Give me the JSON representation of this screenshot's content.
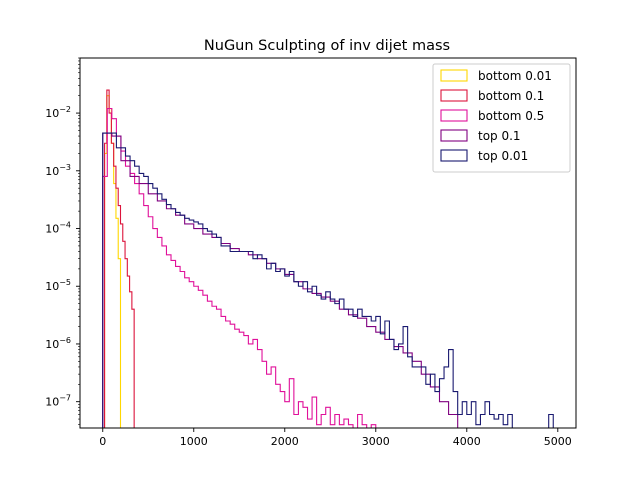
{
  "chart_data": {
    "type": "histogram-step",
    "title": "NuGun Sculpting of inv dijet mass",
    "xlabel": "",
    "ylabel": "",
    "xlim": [
      -250,
      5200
    ],
    "ylim": [
      3.5e-08,
      0.09
    ],
    "yscale": "log",
    "grid": false,
    "legend_position": "top-right",
    "x_ticks": [
      {
        "value": 0,
        "label": "0"
      },
      {
        "value": 1000,
        "label": "1000"
      },
      {
        "value": 2000,
        "label": "2000"
      },
      {
        "value": 3000,
        "label": "3000"
      },
      {
        "value": 4000,
        "label": "4000"
      },
      {
        "value": 5000,
        "label": "5000"
      }
    ],
    "y_ticks": [
      {
        "exp": -7,
        "label": "10",
        "sup": "−7"
      },
      {
        "exp": -6,
        "label": "10",
        "sup": "−6"
      },
      {
        "exp": -5,
        "label": "10",
        "sup": "−5"
      },
      {
        "exp": -4,
        "label": "10",
        "sup": "−4"
      },
      {
        "exp": -3,
        "label": "10",
        "sup": "−3"
      },
      {
        "exp": -2,
        "label": "10",
        "sup": "−2"
      }
    ],
    "series": [
      {
        "name": "bottom 0.01",
        "color": "#ffd700",
        "bin_width": 25,
        "bins": [
          [
            20,
            0.002
          ],
          [
            45,
            0.02
          ],
          [
            70,
            0.012
          ],
          [
            95,
            0.003
          ],
          [
            120,
            0.0006
          ],
          [
            145,
            0.00015
          ],
          [
            170,
            3e-05
          ],
          [
            195,
            0
          ]
        ]
      },
      {
        "name": "bottom 0.1",
        "color": "#dc143c",
        "bin_width": 25,
        "bins": [
          [
            20,
            0.003
          ],
          [
            45,
            0.025
          ],
          [
            70,
            0.01
          ],
          [
            95,
            0.003
          ],
          [
            120,
            0.0012
          ],
          [
            145,
            0.0005
          ],
          [
            170,
            0.00025
          ],
          [
            195,
            0.00012
          ],
          [
            220,
            6e-05
          ],
          [
            245,
            3e-05
          ],
          [
            270,
            1.5e-05
          ],
          [
            295,
            8e-06
          ],
          [
            320,
            4e-06
          ],
          [
            345,
            0
          ]
        ]
      },
      {
        "name": "bottom 0.5",
        "color": "#e0109a",
        "bin_width": 50,
        "bins": [
          [
            0,
            0.0008
          ],
          [
            50,
            0.012
          ],
          [
            100,
            0.008
          ],
          [
            150,
            0.004
          ],
          [
            200,
            0.0022
          ],
          [
            250,
            0.0012
          ],
          [
            300,
            0.0009
          ],
          [
            350,
            0.0006
          ],
          [
            400,
            0.0004
          ],
          [
            450,
            0.00025
          ],
          [
            500,
            0.00016
          ],
          [
            550,
            0.0001
          ],
          [
            600,
            7e-05
          ],
          [
            650,
            5e-05
          ],
          [
            700,
            3.5e-05
          ],
          [
            750,
            2.8e-05
          ],
          [
            800,
            2.2e-05
          ],
          [
            850,
            1.8e-05
          ],
          [
            900,
            1.4e-05
          ],
          [
            950,
            1.2e-05
          ],
          [
            1000,
            1e-05
          ],
          [
            1050,
            8.5e-06
          ],
          [
            1100,
            7e-06
          ],
          [
            1150,
            5.5e-06
          ],
          [
            1200,
            4.5e-06
          ],
          [
            1250,
            4e-06
          ],
          [
            1300,
            3e-06
          ],
          [
            1350,
            2.5e-06
          ],
          [
            1400,
            2.2e-06
          ],
          [
            1450,
            1.8e-06
          ],
          [
            1500,
            1.6e-06
          ],
          [
            1550,
            1.4e-06
          ],
          [
            1600,
            1e-06
          ],
          [
            1650,
            1.2e-06
          ],
          [
            1700,
            8e-07
          ],
          [
            1750,
            5e-07
          ],
          [
            1800,
            3e-07
          ],
          [
            1850,
            4e-07
          ],
          [
            1900,
            2e-07
          ],
          [
            1950,
            1.5e-07
          ],
          [
            2000,
            1e-07
          ],
          [
            2050,
            2.5e-07
          ],
          [
            2100,
            6e-08
          ],
          [
            2150,
            1e-07
          ],
          [
            2200,
            8e-08
          ],
          [
            2250,
            5e-08
          ],
          [
            2300,
            1.2e-07
          ],
          [
            2350,
            4e-08
          ],
          [
            2400,
            6e-08
          ],
          [
            2450,
            8e-08
          ],
          [
            2500,
            4e-08
          ],
          [
            2550,
            6e-08
          ],
          [
            2600,
            4e-08
          ],
          [
            2650,
            5e-08
          ],
          [
            2700,
            4e-08
          ],
          [
            2750,
            2e-08
          ],
          [
            2800,
            6e-08
          ],
          [
            2850,
            4e-08
          ],
          [
            2900,
            2e-08
          ],
          [
            2950,
            4e-08
          ],
          [
            3000,
            0
          ]
        ]
      },
      {
        "name": "top 0.1",
        "color": "#800080",
        "bin_width": 100,
        "bins": [
          [
            0,
            0.0045
          ],
          [
            100,
            0.004
          ],
          [
            200,
            0.0015
          ],
          [
            300,
            0.0008
          ],
          [
            400,
            0.0006
          ],
          [
            500,
            0.0004
          ],
          [
            600,
            0.0003
          ],
          [
            700,
            0.00022
          ],
          [
            800,
            0.00017
          ],
          [
            900,
            0.00012
          ],
          [
            1000,
            0.0001
          ],
          [
            1100,
            8e-05
          ],
          [
            1200,
            7e-05
          ],
          [
            1300,
            5.5e-05
          ],
          [
            1400,
            4.5e-05
          ],
          [
            1500,
            4e-05
          ],
          [
            1600,
            3.5e-05
          ],
          [
            1700,
            3e-05
          ],
          [
            1800,
            2.5e-05
          ],
          [
            1900,
            2e-05
          ],
          [
            2000,
            1.6e-05
          ],
          [
            2100,
            1.2e-05
          ],
          [
            2200,
            9e-06
          ],
          [
            2300,
            7.5e-06
          ],
          [
            2400,
            6.5e-06
          ],
          [
            2500,
            5.5e-06
          ],
          [
            2600,
            4e-06
          ],
          [
            2700,
            3.2e-06
          ],
          [
            2800,
            2.8e-06
          ],
          [
            2900,
            2e-06
          ],
          [
            3000,
            1.6e-06
          ],
          [
            3100,
            1.2e-06
          ],
          [
            3200,
            9e-07
          ],
          [
            3300,
            7e-07
          ],
          [
            3400,
            5e-07
          ],
          [
            3500,
            3e-07
          ],
          [
            3600,
            1.8e-07
          ],
          [
            3700,
            1e-07
          ],
          [
            3800,
            6e-08
          ],
          [
            3900,
            0
          ]
        ]
      },
      {
        "name": "top 0.01",
        "color": "#191970",
        "bin_width": 50,
        "bins": [
          [
            0,
            0.0045
          ],
          [
            50,
            0.0045
          ],
          [
            100,
            0.0045
          ],
          [
            150,
            0.0025
          ],
          [
            200,
            0.0025
          ],
          [
            250,
            0.0018
          ],
          [
            300,
            0.0015
          ],
          [
            350,
            0.0012
          ],
          [
            400,
            0.0009
          ],
          [
            450,
            0.0008
          ],
          [
            500,
            0.0006
          ],
          [
            550,
            0.0005
          ],
          [
            600,
            0.0004
          ],
          [
            650,
            0.00032
          ],
          [
            700,
            0.00026
          ],
          [
            750,
            0.00022
          ],
          [
            800,
            0.00019
          ],
          [
            850,
            0.00017
          ],
          [
            900,
            0.00015
          ],
          [
            950,
            0.00014
          ],
          [
            1000,
            0.00013
          ],
          [
            1050,
            0.00012
          ],
          [
            1100,
            0.0001
          ],
          [
            1150,
            9e-05
          ],
          [
            1200,
            8e-05
          ],
          [
            1250,
            7e-05
          ],
          [
            1300,
            5e-05
          ],
          [
            1350,
            5e-05
          ],
          [
            1400,
            4e-05
          ],
          [
            1450,
            4e-05
          ],
          [
            1500,
            4e-05
          ],
          [
            1550,
            4e-05
          ],
          [
            1600,
            4e-05
          ],
          [
            1650,
            3e-05
          ],
          [
            1700,
            3.5e-05
          ],
          [
            1750,
            3e-05
          ],
          [
            1800,
            2e-05
          ],
          [
            1850,
            2.5e-05
          ],
          [
            1900,
            1.8e-05
          ],
          [
            1950,
            2e-05
          ],
          [
            2000,
            1.5e-05
          ],
          [
            2050,
            1.8e-05
          ],
          [
            2100,
            1.2e-05
          ],
          [
            2150,
            1e-05
          ],
          [
            2200,
            1.2e-05
          ],
          [
            2250,
            8e-06
          ],
          [
            2300,
            1e-05
          ],
          [
            2350,
            7e-06
          ],
          [
            2400,
            6e-06
          ],
          [
            2450,
            8e-06
          ],
          [
            2500,
            6e-06
          ],
          [
            2550,
            5e-06
          ],
          [
            2600,
            6e-06
          ],
          [
            2650,
            4e-06
          ],
          [
            2700,
            4e-06
          ],
          [
            2750,
            3e-06
          ],
          [
            2800,
            4e-06
          ],
          [
            2850,
            3e-06
          ],
          [
            2900,
            3e-06
          ],
          [
            2950,
            2.5e-06
          ],
          [
            3000,
            3e-06
          ],
          [
            3050,
            1.5e-06
          ],
          [
            3100,
            2.5e-06
          ],
          [
            3150,
            1.2e-06
          ],
          [
            3200,
            8e-07
          ],
          [
            3250,
            1e-06
          ],
          [
            3300,
            2e-06
          ],
          [
            3350,
            6e-07
          ],
          [
            3400,
            4e-07
          ],
          [
            3450,
            4e-07
          ],
          [
            3500,
            4e-07
          ],
          [
            3550,
            2e-07
          ],
          [
            3600,
            3e-07
          ],
          [
            3650,
            1.5e-07
          ],
          [
            3700,
            2.5e-07
          ],
          [
            3750,
            4e-07
          ],
          [
            3800,
            8e-07
          ],
          [
            3850,
            1.5e-07
          ],
          [
            3900,
            6e-08
          ],
          [
            3950,
            1e-07
          ],
          [
            4000,
            6e-08
          ],
          [
            4050,
            1e-07
          ],
          [
            4100,
            4e-08
          ],
          [
            4150,
            6e-08
          ],
          [
            4200,
            1e-07
          ],
          [
            4250,
            6e-08
          ],
          [
            4300,
            5e-08
          ],
          [
            4350,
            6e-08
          ],
          [
            4400,
            4e-08
          ],
          [
            4450,
            6e-08
          ],
          [
            4500,
            2e-08
          ],
          [
            4550,
            2e-08
          ],
          [
            4600,
            2e-08
          ],
          [
            4650,
            2e-08
          ],
          [
            4700,
            2e-08
          ],
          [
            4750,
            2e-08
          ],
          [
            4800,
            2e-08
          ],
          [
            4850,
            2e-08
          ],
          [
            4900,
            6e-08
          ],
          [
            4950,
            0
          ]
        ]
      }
    ]
  }
}
